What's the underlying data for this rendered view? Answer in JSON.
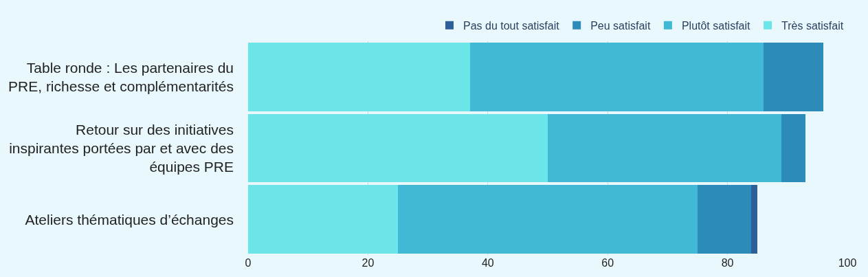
{
  "chart_data": {
    "type": "bar",
    "orientation": "horizontal",
    "stacked": true,
    "categories": [
      "Table ronde : Les partenaires du PRE, richesse et complémentarités",
      "Retour sur des initiatives inspirantes portées par et avec des équipes PRE",
      "Ateliers thématiques d’échanges"
    ],
    "series": [
      {
        "name": "Très satisfait",
        "color": "#6ce5e8",
        "values": [
          37,
          50,
          25
        ]
      },
      {
        "name": "Plutôt satisfait",
        "color": "#41b8d5",
        "values": [
          49,
          39,
          50
        ]
      },
      {
        "name": "Peu satisfait",
        "color": "#2d8bba",
        "values": [
          10,
          4,
          9
        ]
      },
      {
        "name": "Pas du tout satisfait",
        "color": "#2f5f98",
        "values": [
          0,
          0,
          1
        ]
      }
    ],
    "xlim": [
      0,
      100
    ],
    "xticks": [
      0,
      20,
      40,
      60,
      80,
      100
    ],
    "grid": "x",
    "legend": "top right"
  }
}
